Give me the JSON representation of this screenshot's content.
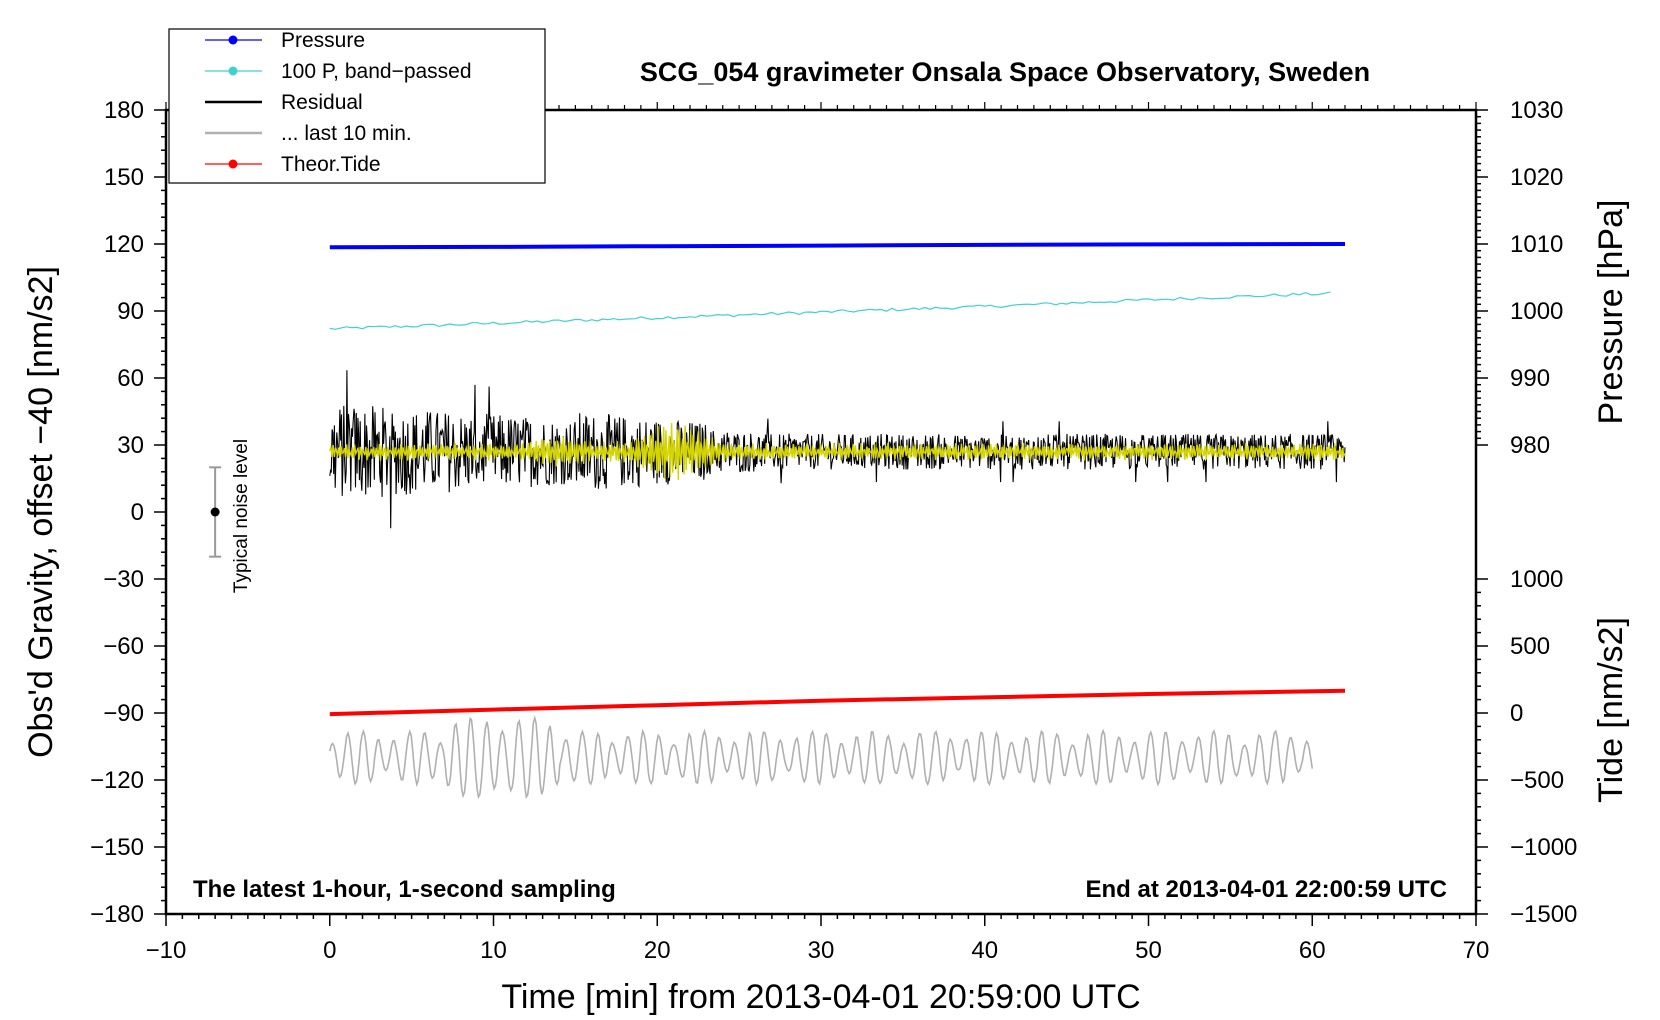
{
  "chart_data": {
    "type": "line",
    "title": "SCG_054 gravimeter Onsala Space Observatory, Sweden",
    "xlabel": "Time [min] from 2013-04-01 20:59:00 UTC",
    "ylabel_left": "Obs'd Gravity, offset −40 [nm/s2]",
    "ylabel_right_top": "Pressure [hPa]",
    "ylabel_right_bottom": "Tide [nm/s2]",
    "xlim": [
      -10,
      70
    ],
    "ylim": [
      -180,
      180
    ],
    "x_ticks": [
      -10,
      0,
      10,
      20,
      30,
      40,
      50,
      60,
      70
    ],
    "x_tick_labels": [
      "−10",
      "0",
      "10",
      "20",
      "30",
      "40",
      "50",
      "60",
      "70"
    ],
    "y_ticks": [
      -180,
      -150,
      -120,
      -90,
      -60,
      -30,
      0,
      30,
      60,
      90,
      120,
      150,
      180
    ],
    "y_tick_labels": [
      "−180",
      "−150",
      "−120",
      "−90",
      "−60",
      "−30",
      "0",
      "30",
      "60",
      "90",
      "120",
      "150",
      "180"
    ],
    "pressure_axis": {
      "ticks": [
        980,
        990,
        1000,
        1010,
        1020,
        1030
      ],
      "labels": [
        "980",
        "990",
        "1000",
        "1010",
        "1020",
        "1030"
      ],
      "gravity_at_980": 30,
      "gravity_per_hPa": 3
    },
    "tide_axis": {
      "ticks": [
        -1500,
        -1000,
        -500,
        0,
        500,
        1000
      ],
      "labels": [
        "−1500",
        "−1000",
        "−500",
        "0",
        "500",
        "1000"
      ],
      "gravity_at_0": -90,
      "gravity_per_unit": 0.06
    },
    "series": [
      {
        "name": "Pressure",
        "color": "#0000ff",
        "x": [
          0,
          10,
          20,
          30,
          40,
          50,
          62
        ],
        "values": [
          118.5,
          118.7,
          119.0,
          119.3,
          119.6,
          119.8,
          120.0
        ]
      },
      {
        "name": "100 P, band−passed",
        "color": "#40d0d0",
        "x": [
          0,
          10,
          20,
          30,
          40,
          50,
          61.5
        ],
        "values": [
          82,
          84.5,
          87,
          89.5,
          92,
          95,
          98
        ]
      },
      {
        "name": "Residual",
        "color": "#000000",
        "x_range": [
          0,
          62
        ],
        "center": 27,
        "amplitude_start": 22,
        "amplitude_end": 8,
        "peak_max": 67,
        "peak_min": -21
      },
      {
        "name": "Residual smoothed",
        "color": "#d4d400",
        "x_range": [
          0,
          62
        ],
        "center": 27,
        "amplitude": 3,
        "burst_center": 21,
        "burst_amplitude": 9
      },
      {
        "name": "... last 10 min.",
        "color": "#b0b0b0",
        "x_range": [
          0,
          60
        ],
        "center": -110,
        "amplitude": 12
      },
      {
        "name": "Theor.Tide",
        "color": "#ff0000",
        "x": [
          0,
          10,
          20,
          30,
          40,
          50,
          62
        ],
        "values": [
          -90.5,
          -88.5,
          -86.5,
          -84.5,
          -83,
          -81.5,
          -80
        ]
      }
    ],
    "legend": [
      {
        "label": "Pressure",
        "color": "#0000ff",
        "marker": true
      },
      {
        "label": "100 P, band−passed",
        "color": "#40d0d0",
        "marker": true
      },
      {
        "label": "Residual",
        "color": "#000000",
        "marker": false
      },
      {
        "label": "... last 10 min.",
        "color": "#b0b0b0",
        "marker": false
      },
      {
        "label": "Theor.Tide",
        "color": "#ff0000",
        "marker": true
      }
    ],
    "legend_position": "top-left",
    "noise_bar": {
      "label": "Typical noise level",
      "x": -7,
      "center": 0,
      "half_range": 20
    },
    "annotation_left": "The latest 1-hour, 1-second sampling",
    "annotation_right": "End at 2013-04-01 22:00:59 UTC"
  }
}
